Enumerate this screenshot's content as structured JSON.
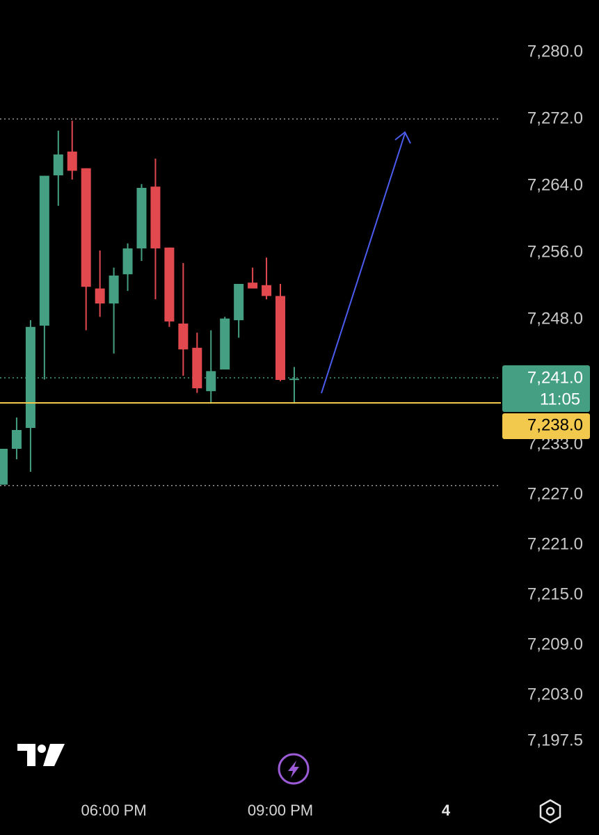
{
  "chart_data": {
    "type": "candlestick",
    "categories": [
      null,
      null,
      null,
      null,
      null,
      null,
      null,
      null,
      "06:00 PM",
      null,
      null,
      null,
      null,
      null,
      null,
      null,
      null,
      null,
      null,
      null,
      "09:00 PM",
      null
    ],
    "series": [
      {
        "up_color": "#45a083",
        "down_color": "#e2494f",
        "open": [
          7228.2,
          7232.5,
          7235.0,
          7247.25,
          7265.25,
          7268.1,
          7266.1,
          7251.7,
          7249.9,
          7253.4,
          7256.5,
          7263.9,
          7256.6,
          7247.5,
          7244.6,
          7239.4,
          7242.0,
          7247.9,
          7252.4,
          7252.1,
          7250.8,
          7240.75
        ],
        "high": [
          7232.5,
          7236.25,
          7247.9,
          7265.2,
          7270.6,
          7271.8,
          7266.1,
          7256.25,
          7254.2,
          7257.1,
          7264.2,
          7267.25,
          7256.6,
          7254.75,
          7246.4,
          7246.7,
          7248.3,
          7252.25,
          7254.2,
          7255.4,
          7252.25,
          7242.3
        ],
        "low": [
          7228.2,
          7231.25,
          7229.75,
          7240.8,
          7261.6,
          7264.75,
          7246.7,
          7248.3,
          7243.9,
          7251.4,
          7255.0,
          7250.4,
          7247.1,
          7241.25,
          7239.2,
          7237.9,
          7242.0,
          7245.8,
          7251.7,
          7250.4,
          7240.6,
          7237.9
        ],
        "close": [
          7232.5,
          7234.75,
          7247.1,
          7265.2,
          7267.75,
          7265.8,
          7251.9,
          7249.9,
          7253.25,
          7256.5,
          7263.75,
          7256.5,
          7247.75,
          7244.4,
          7239.75,
          7241.8,
          7248.1,
          7252.25,
          7251.7,
          7250.8,
          7240.75,
          7240.9
        ]
      }
    ],
    "ylim": [
      7192.08,
      7286.25
    ],
    "yticks": [
      {
        "value": 7280,
        "label": "7,280.0"
      },
      {
        "value": 7272,
        "label": "7,272.0"
      },
      {
        "value": 7264,
        "label": "7,264.0"
      },
      {
        "value": 7256,
        "label": "7,256.0"
      },
      {
        "value": 7248,
        "label": "7,248.0"
      },
      {
        "value": 7233,
        "label": "7,233.0"
      },
      {
        "value": 7227,
        "label": "7,227.0"
      },
      {
        "value": 7221,
        "label": "7,221.0"
      },
      {
        "value": 7215,
        "label": "7,215.0"
      },
      {
        "value": 7209,
        "label": "7,209.0"
      },
      {
        "value": 7203,
        "label": "7,203.0"
      },
      {
        "value": 7197.5,
        "label": "7,197.5"
      }
    ],
    "levels": [
      7272,
      7228.1
    ],
    "last_price": {
      "value": 7241,
      "label": "7,241.0",
      "countdown": "11:05",
      "color": "#45a083"
    },
    "alert_price": {
      "value": 7238,
      "label": "7,238.0",
      "color": "#f2c94c"
    },
    "toolbar_count": "4"
  }
}
